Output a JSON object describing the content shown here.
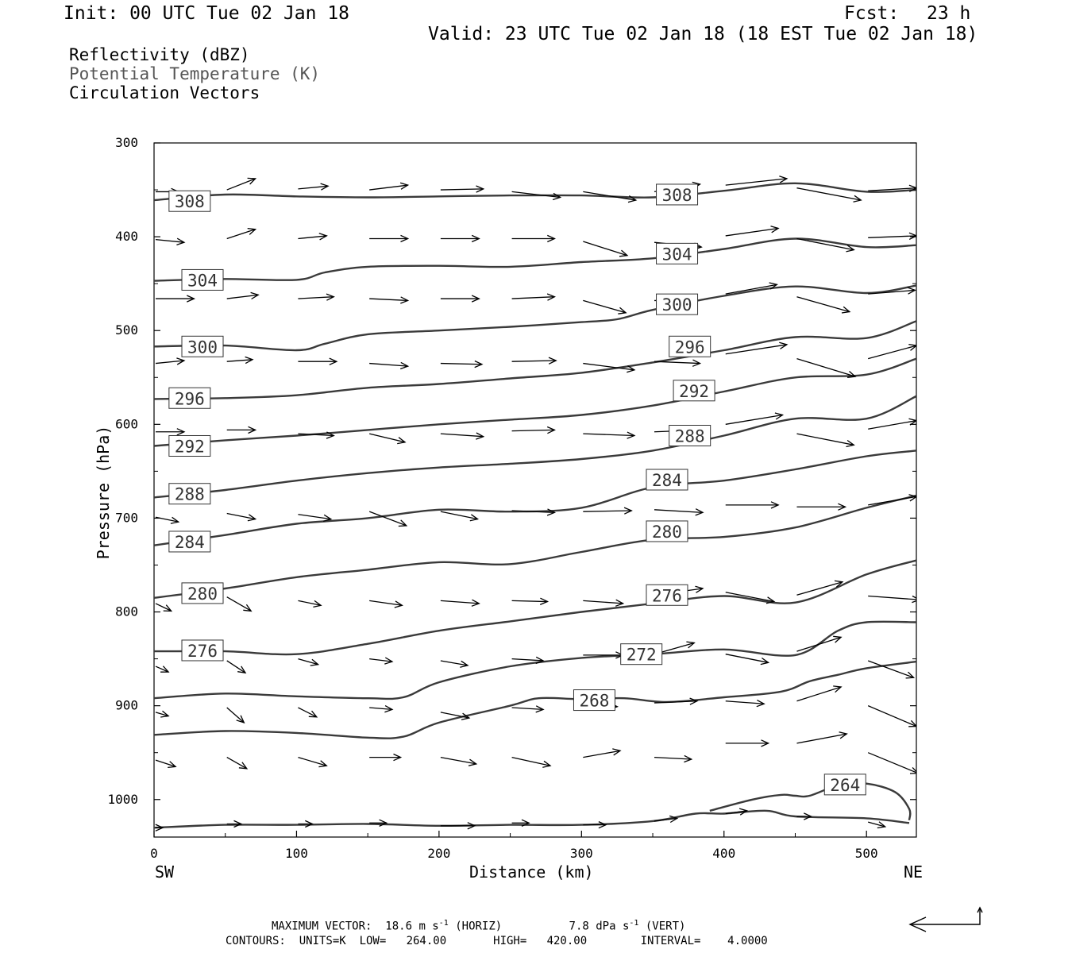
{
  "header": {
    "init": "Init: 00 UTC Tue 02 Jan 18",
    "fcst_label": "Fcst:",
    "fcst_value": "23 h",
    "valid": "Valid: 23 UTC Tue 02 Jan 18 (18 EST Tue 02 Jan 18)"
  },
  "legend": {
    "line1": "Reflectivity (dBZ)",
    "line2": "Potential Temperature (K)",
    "line3": "Circulation Vectors"
  },
  "footer": {
    "max_vector_label": "MAXIMUM VECTOR:",
    "horiz_value": "18.6 m s",
    "horiz_exp": "-1",
    "horiz_tag": "(HORIZ)",
    "vert_value": "7.8 dPa s",
    "vert_exp": "-1",
    "vert_tag": "(VERT)",
    "contours_line": "CONTOURS:  UNITS=K  LOW=   264.00       HIGH=   420.00        INTERVAL=    4.0000"
  },
  "colors": {
    "contour": "#3a3a3a",
    "vector": "#000000",
    "axis": "#000000"
  },
  "chart_data": {
    "type": "line",
    "title": "",
    "xlabel": "Distance (km)",
    "ylabel": "Pressure (hPa)",
    "xlim": [
      0,
      535
    ],
    "ylim": [
      1040,
      300
    ],
    "y_scale": "linear, inverted",
    "x_ticks": [
      0,
      100,
      200,
      300,
      400,
      500
    ],
    "x_tick_labels": [
      "0",
      "100",
      "200",
      "300",
      "400",
      "500"
    ],
    "y_ticks": [
      300,
      400,
      500,
      600,
      700,
      800,
      900,
      1000
    ],
    "y_tick_labels": [
      "300",
      "400",
      "500",
      "600",
      "700",
      "800",
      "900",
      "1000"
    ],
    "x_end_labels": {
      "left": "SW",
      "right": "NE"
    },
    "grid": false,
    "contour_labels": [
      {
        "text": "308",
        "x": 25,
        "p": 362
      },
      {
        "text": "308",
        "x": 367,
        "p": 355
      },
      {
        "text": "304",
        "x": 34,
        "p": 446
      },
      {
        "text": "304",
        "x": 367,
        "p": 418
      },
      {
        "text": "300",
        "x": 34,
        "p": 517
      },
      {
        "text": "300",
        "x": 367,
        "p": 472
      },
      {
        "text": "296",
        "x": 25,
        "p": 572
      },
      {
        "text": "296",
        "x": 376,
        "p": 517
      },
      {
        "text": "292",
        "x": 25,
        "p": 623
      },
      {
        "text": "292",
        "x": 379,
        "p": 564
      },
      {
        "text": "288",
        "x": 25,
        "p": 674
      },
      {
        "text": "288",
        "x": 376,
        "p": 612
      },
      {
        "text": "284",
        "x": 25,
        "p": 725
      },
      {
        "text": "284",
        "x": 360,
        "p": 659
      },
      {
        "text": "280",
        "x": 34,
        "p": 780
      },
      {
        "text": "280",
        "x": 360,
        "p": 714
      },
      {
        "text": "276",
        "x": 34,
        "p": 841
      },
      {
        "text": "276",
        "x": 360,
        "p": 782
      },
      {
        "text": "272",
        "x": 342,
        "p": 845
      },
      {
        "text": "268",
        "x": 309,
        "p": 894
      },
      {
        "text": "264",
        "x": 485,
        "p": 984
      }
    ],
    "series": [
      {
        "name": "308",
        "x": [
          0,
          50,
          100,
          150,
          200,
          250,
          300,
          350,
          400,
          450,
          500,
          535
        ],
        "p": [
          361,
          355,
          357,
          358,
          357,
          356,
          356,
          358,
          351,
          343,
          352,
          350
        ]
      },
      {
        "name": "304",
        "x": [
          0,
          50,
          100,
          120,
          150,
          200,
          250,
          300,
          350,
          400,
          450,
          500,
          535
        ],
        "p": [
          447,
          445,
          446,
          438,
          432,
          431,
          432,
          427,
          423,
          413,
          402,
          411,
          409
        ]
      },
      {
        "name": "300",
        "x": [
          0,
          50,
          100,
          120,
          150,
          200,
          250,
          300,
          325,
          350,
          400,
          450,
          500,
          535
        ],
        "p": [
          517,
          516,
          521,
          514,
          504,
          500,
          496,
          491,
          488,
          478,
          463,
          453,
          460,
          452
        ]
      },
      {
        "name": "296",
        "x": [
          0,
          50,
          100,
          150,
          200,
          250,
          300,
          350,
          400,
          450,
          500,
          535
        ],
        "p": [
          573,
          572,
          569,
          561,
          557,
          551,
          545,
          534,
          521,
          507,
          508,
          490
        ]
      },
      {
        "name": "292",
        "x": [
          0,
          50,
          100,
          150,
          200,
          250,
          300,
          350,
          400,
          450,
          500,
          535
        ],
        "p": [
          623,
          617,
          612,
          606,
          600,
          595,
          590,
          580,
          565,
          550,
          547,
          530
        ]
      },
      {
        "name": "288",
        "x": [
          0,
          50,
          100,
          150,
          200,
          250,
          300,
          350,
          400,
          450,
          500,
          535
        ],
        "p": [
          678,
          670,
          660,
          652,
          646,
          642,
          637,
          628,
          612,
          594,
          594,
          570
        ]
      },
      {
        "name": "284",
        "x": [
          0,
          50,
          100,
          150,
          200,
          250,
          300,
          350,
          400,
          450,
          500,
          535
        ],
        "p": [
          729,
          718,
          706,
          700,
          691,
          693,
          689,
          667,
          660,
          648,
          634,
          628
        ]
      },
      {
        "name": "280",
        "x": [
          0,
          50,
          100,
          150,
          200,
          250,
          300,
          350,
          400,
          450,
          500,
          535
        ],
        "p": [
          785,
          775,
          763,
          755,
          747,
          749,
          736,
          723,
          720,
          710,
          689,
          676
        ]
      },
      {
        "name": "276",
        "x": [
          0,
          50,
          100,
          150,
          200,
          250,
          300,
          350,
          400,
          450,
          500,
          535
        ],
        "p": [
          842,
          842,
          845,
          834,
          820,
          810,
          800,
          791,
          783,
          790,
          760,
          745
        ]
      },
      {
        "name": "272",
        "x": [
          0,
          50,
          100,
          150,
          175,
          200,
          250,
          300,
          350,
          400,
          450,
          480,
          500,
          535
        ],
        "p": [
          892,
          887,
          890,
          892,
          891,
          875,
          858,
          849,
          845,
          840,
          846,
          820,
          811,
          811
        ]
      },
      {
        "name": "268",
        "x": [
          0,
          50,
          100,
          150,
          175,
          200,
          250,
          270,
          300,
          330,
          360,
          400,
          440,
          460,
          480,
          500,
          535
        ],
        "p": [
          931,
          927,
          929,
          934,
          933,
          918,
          900,
          892,
          893,
          892,
          896,
          891,
          885,
          874,
          867,
          860,
          853
        ]
      },
      {
        "name": "264",
        "x": [
          390,
          420,
          440,
          450,
          460,
          480,
          500,
          520,
          530,
          530
        ],
        "p": [
          1012,
          1000,
          995,
          996,
          996,
          985,
          983,
          992,
          1010,
          1022
        ]
      },
      {
        "name": "264-lower",
        "x": [
          0,
          50,
          100,
          150,
          200,
          250,
          300,
          350,
          380,
          400,
          430,
          450,
          500,
          530
        ],
        "p": [
          1030,
          1027,
          1027,
          1026,
          1028,
          1027,
          1027,
          1023,
          1015,
          1015,
          1012,
          1018,
          1020,
          1025
        ]
      }
    ],
    "vectors": [
      {
        "x": 0,
        "p": 352,
        "dx": 16,
        "dp": 0
      },
      {
        "x": 50,
        "p": 350,
        "dx": 20,
        "dp": -12
      },
      {
        "x": 100,
        "p": 349,
        "dx": 21,
        "dp": -3
      },
      {
        "x": 150,
        "p": 350,
        "dx": 27,
        "dp": -5
      },
      {
        "x": 200,
        "p": 350,
        "dx": 30,
        "dp": -1
      },
      {
        "x": 250,
        "p": 352,
        "dx": 34,
        "dp": 6
      },
      {
        "x": 300,
        "p": 352,
        "dx": 37,
        "dp": 9
      },
      {
        "x": 350,
        "p": 352,
        "dx": 32,
        "dp": -8
      },
      {
        "x": 400,
        "p": 345,
        "dx": 43,
        "dp": -7
      },
      {
        "x": 450,
        "p": 348,
        "dx": 45,
        "dp": 13
      },
      {
        "x": 500,
        "p": 351,
        "dx": 34,
        "dp": -3
      },
      {
        "x": 0,
        "p": 403,
        "dx": 20,
        "dp": 3
      },
      {
        "x": 50,
        "p": 402,
        "dx": 20,
        "dp": -10
      },
      {
        "x": 100,
        "p": 402,
        "dx": 20,
        "dp": -3
      },
      {
        "x": 150,
        "p": 402,
        "dx": 27,
        "dp": 0
      },
      {
        "x": 200,
        "p": 402,
        "dx": 27,
        "dp": 0
      },
      {
        "x": 250,
        "p": 402,
        "dx": 30,
        "dp": 0
      },
      {
        "x": 300,
        "p": 405,
        "dx": 31,
        "dp": 15
      },
      {
        "x": 350,
        "p": 406,
        "dx": 33,
        "dp": 5
      },
      {
        "x": 400,
        "p": 399,
        "dx": 37,
        "dp": -8
      },
      {
        "x": 450,
        "p": 402,
        "dx": 40,
        "dp": 12
      },
      {
        "x": 500,
        "p": 401,
        "dx": 34,
        "dp": -2
      },
      {
        "x": 0,
        "p": 466,
        "dx": 27,
        "dp": 0
      },
      {
        "x": 50,
        "p": 466,
        "dx": 22,
        "dp": -4
      },
      {
        "x": 100,
        "p": 466,
        "dx": 25,
        "dp": -2
      },
      {
        "x": 150,
        "p": 466,
        "dx": 27,
        "dp": 2
      },
      {
        "x": 200,
        "p": 466,
        "dx": 27,
        "dp": 0
      },
      {
        "x": 250,
        "p": 466,
        "dx": 30,
        "dp": -2
      },
      {
        "x": 300,
        "p": 468,
        "dx": 30,
        "dp": 13
      },
      {
        "x": 350,
        "p": 468,
        "dx": 30,
        "dp": 0
      },
      {
        "x": 400,
        "p": 461,
        "dx": 36,
        "dp": -10
      },
      {
        "x": 450,
        "p": 464,
        "dx": 37,
        "dp": 16
      },
      {
        "x": 500,
        "p": 461,
        "dx": 33,
        "dp": -4
      },
      {
        "x": 0,
        "p": 535,
        "dx": 20,
        "dp": -3
      },
      {
        "x": 50,
        "p": 533,
        "dx": 18,
        "dp": -2
      },
      {
        "x": 100,
        "p": 533,
        "dx": 27,
        "dp": 0
      },
      {
        "x": 150,
        "p": 535,
        "dx": 27,
        "dp": 3
      },
      {
        "x": 200,
        "p": 535,
        "dx": 29,
        "dp": 1
      },
      {
        "x": 250,
        "p": 533,
        "dx": 31,
        "dp": -1
      },
      {
        "x": 300,
        "p": 535,
        "dx": 36,
        "dp": 7
      },
      {
        "x": 350,
        "p": 533,
        "dx": 32,
        "dp": 2
      },
      {
        "x": 400,
        "p": 525,
        "dx": 43,
        "dp": -10
      },
      {
        "x": 450,
        "p": 530,
        "dx": 41,
        "dp": 19
      },
      {
        "x": 500,
        "p": 530,
        "dx": 34,
        "dp": -14
      },
      {
        "x": 0,
        "p": 608,
        "dx": 20,
        "dp": 0
      },
      {
        "x": 50,
        "p": 606,
        "dx": 20,
        "dp": 0
      },
      {
        "x": 100,
        "p": 610,
        "dx": 25,
        "dp": 2
      },
      {
        "x": 150,
        "p": 610,
        "dx": 25,
        "dp": 9
      },
      {
        "x": 200,
        "p": 610,
        "dx": 30,
        "dp": 3
      },
      {
        "x": 250,
        "p": 607,
        "dx": 30,
        "dp": -1
      },
      {
        "x": 300,
        "p": 610,
        "dx": 36,
        "dp": 2
      },
      {
        "x": 350,
        "p": 608,
        "dx": 34,
        "dp": -2
      },
      {
        "x": 400,
        "p": 600,
        "dx": 40,
        "dp": -10
      },
      {
        "x": 450,
        "p": 610,
        "dx": 40,
        "dp": 12
      },
      {
        "x": 500,
        "p": 605,
        "dx": 34,
        "dp": -9
      },
      {
        "x": 0,
        "p": 699,
        "dx": 16,
        "dp": 5
      },
      {
        "x": 50,
        "p": 695,
        "dx": 20,
        "dp": 6
      },
      {
        "x": 100,
        "p": 696,
        "dx": 23,
        "dp": 5
      },
      {
        "x": 150,
        "p": 693,
        "dx": 26,
        "dp": 15
      },
      {
        "x": 200,
        "p": 693,
        "dx": 26,
        "dp": 8
      },
      {
        "x": 250,
        "p": 692,
        "dx": 30,
        "dp": 2
      },
      {
        "x": 300,
        "p": 693,
        "dx": 34,
        "dp": -1
      },
      {
        "x": 350,
        "p": 691,
        "dx": 34,
        "dp": 3
      },
      {
        "x": 400,
        "p": 686,
        "dx": 37,
        "dp": 0
      },
      {
        "x": 450,
        "p": 688,
        "dx": 34,
        "dp": 0
      },
      {
        "x": 500,
        "p": 686,
        "dx": 34,
        "dp": -9
      },
      {
        "x": 0,
        "p": 791,
        "dx": 11,
        "dp": 8
      },
      {
        "x": 50,
        "p": 784,
        "dx": 17,
        "dp": 15
      },
      {
        "x": 100,
        "p": 788,
        "dx": 16,
        "dp": 5
      },
      {
        "x": 150,
        "p": 788,
        "dx": 23,
        "dp": 5
      },
      {
        "x": 200,
        "p": 788,
        "dx": 27,
        "dp": 3
      },
      {
        "x": 250,
        "p": 788,
        "dx": 25,
        "dp": 1
      },
      {
        "x": 300,
        "p": 788,
        "dx": 28,
        "dp": 3
      },
      {
        "x": 350,
        "p": 782,
        "dx": 34,
        "dp": -7
      },
      {
        "x": 400,
        "p": 779,
        "dx": 34,
        "dp": 10
      },
      {
        "x": 450,
        "p": 782,
        "dx": 32,
        "dp": -14
      },
      {
        "x": 500,
        "p": 783,
        "dx": 36,
        "dp": 4
      },
      {
        "x": 0,
        "p": 858,
        "dx": 9,
        "dp": 6
      },
      {
        "x": 50,
        "p": 852,
        "dx": 13,
        "dp": 13
      },
      {
        "x": 100,
        "p": 850,
        "dx": 14,
        "dp": 6
      },
      {
        "x": 150,
        "p": 850,
        "dx": 16,
        "dp": 3
      },
      {
        "x": 200,
        "p": 852,
        "dx": 19,
        "dp": 5
      },
      {
        "x": 250,
        "p": 850,
        "dx": 22,
        "dp": 2
      },
      {
        "x": 300,
        "p": 846,
        "dx": 28,
        "dp": 0
      },
      {
        "x": 350,
        "p": 845,
        "dx": 28,
        "dp": -12
      },
      {
        "x": 400,
        "p": 845,
        "dx": 30,
        "dp": 9
      },
      {
        "x": 450,
        "p": 842,
        "dx": 31,
        "dp": -15
      },
      {
        "x": 500,
        "p": 852,
        "dx": 32,
        "dp": 18
      },
      {
        "x": 0,
        "p": 907,
        "dx": 9,
        "dp": 4
      },
      {
        "x": 50,
        "p": 902,
        "dx": 12,
        "dp": 16
      },
      {
        "x": 100,
        "p": 902,
        "dx": 13,
        "dp": 10
      },
      {
        "x": 150,
        "p": 902,
        "dx": 16,
        "dp": 2
      },
      {
        "x": 200,
        "p": 907,
        "dx": 20,
        "dp": 6
      },
      {
        "x": 250,
        "p": 902,
        "dx": 22,
        "dp": 2
      },
      {
        "x": 300,
        "p": 899,
        "dx": 24,
        "dp": 2
      },
      {
        "x": 350,
        "p": 897,
        "dx": 30,
        "dp": -2
      },
      {
        "x": 400,
        "p": 895,
        "dx": 27,
        "dp": 3
      },
      {
        "x": 450,
        "p": 895,
        "dx": 31,
        "dp": -15
      },
      {
        "x": 500,
        "p": 900,
        "dx": 34,
        "dp": 22
      },
      {
        "x": 0,
        "p": 958,
        "dx": 14,
        "dp": 7
      },
      {
        "x": 50,
        "p": 955,
        "dx": 14,
        "dp": 12
      },
      {
        "x": 100,
        "p": 955,
        "dx": 20,
        "dp": 9
      },
      {
        "x": 150,
        "p": 955,
        "dx": 22,
        "dp": 0
      },
      {
        "x": 200,
        "p": 955,
        "dx": 25,
        "dp": 7
      },
      {
        "x": 250,
        "p": 955,
        "dx": 27,
        "dp": 9
      },
      {
        "x": 300,
        "p": 955,
        "dx": 26,
        "dp": -7
      },
      {
        "x": 350,
        "p": 955,
        "dx": 26,
        "dp": 2
      },
      {
        "x": 400,
        "p": 940,
        "dx": 30,
        "dp": 0
      },
      {
        "x": 450,
        "p": 940,
        "dx": 35,
        "dp": -10
      },
      {
        "x": 500,
        "p": 950,
        "dx": 35,
        "dp": 22
      },
      {
        "x": 0,
        "p": 1030,
        "dx": 5,
        "dp": 0
      },
      {
        "x": 50,
        "p": 1026,
        "dx": 10,
        "dp": 0
      },
      {
        "x": 100,
        "p": 1026,
        "dx": 10,
        "dp": 0
      },
      {
        "x": 150,
        "p": 1025,
        "dx": 12,
        "dp": 0
      },
      {
        "x": 200,
        "p": 1028,
        "dx": 24,
        "dp": 0
      },
      {
        "x": 250,
        "p": 1025,
        "dx": 12,
        "dp": 0
      },
      {
        "x": 300,
        "p": 1027,
        "dx": 16,
        "dp": 0
      },
      {
        "x": 350,
        "p": 1023,
        "dx": 16,
        "dp": -3
      },
      {
        "x": 400,
        "p": 1015,
        "dx": 15,
        "dp": -3
      },
      {
        "x": 450,
        "p": 1018,
        "dx": 10,
        "dp": 0
      },
      {
        "x": 500,
        "p": 1024,
        "dx": 12,
        "dp": 5
      }
    ]
  }
}
